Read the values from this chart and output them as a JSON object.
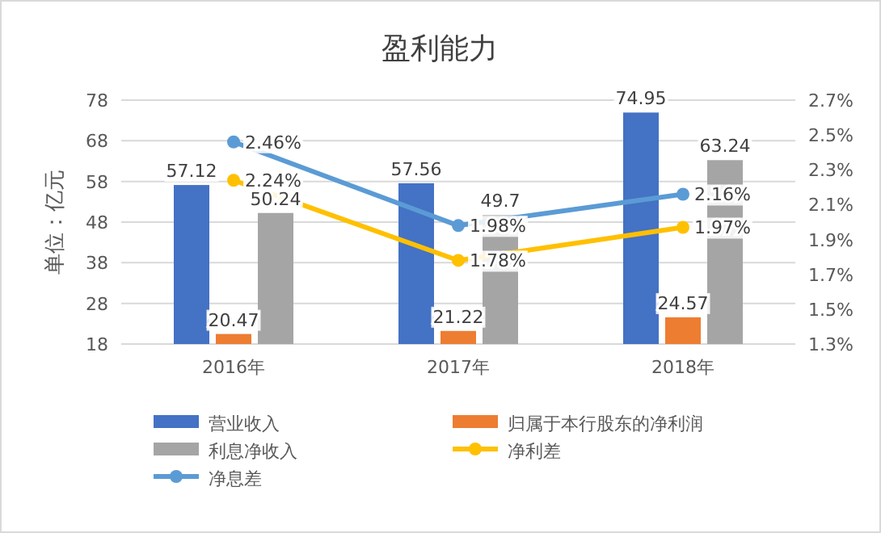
{
  "chart_data": {
    "type": "bar",
    "title": "盈利能力",
    "ylabel": "单位：亿元",
    "categories": [
      "2016年",
      "2017年",
      "2018年"
    ],
    "series": [
      {
        "name": "营业收入",
        "color": "#4472c4",
        "values": [
          57.12,
          57.56,
          74.95
        ],
        "value_labels": [
          "57.12",
          "57.56",
          "74.95"
        ]
      },
      {
        "name": "归属于本行股东的净利润",
        "color": "#ed7d31",
        "values": [
          20.47,
          21.22,
          24.57
        ],
        "value_labels": [
          "20.47",
          "21.22",
          "24.57"
        ]
      },
      {
        "name": "利息净收入",
        "color": "#a5a5a5",
        "values": [
          50.24,
          49.7,
          63.24
        ],
        "value_labels": [
          "50.24",
          "49.7",
          "63.24"
        ]
      },
      {
        "name": "净利差",
        "type": "line",
        "axis": "y2",
        "color": "#ffc000",
        "values": [
          2.24,
          1.78,
          1.97
        ],
        "value_labels": [
          "2.24%",
          "1.78%",
          "1.97%"
        ]
      },
      {
        "name": "净息差",
        "type": "line",
        "axis": "y2",
        "color": "#5b9bd5",
        "values": [
          2.46,
          1.98,
          2.16
        ],
        "value_labels": [
          "2.46%",
          "1.98%",
          "2.16%"
        ]
      }
    ],
    "ylim": [
      18,
      78
    ],
    "yticks": [
      18,
      28,
      38,
      48,
      58,
      68,
      78
    ],
    "y2lim": [
      1.3,
      2.7
    ],
    "y2ticks": [
      {
        "value": 1.3,
        "label": "1.3%"
      },
      {
        "value": 1.5,
        "label": "1.5%"
      },
      {
        "value": 1.7,
        "label": "1.7%"
      },
      {
        "value": 1.9,
        "label": "1.9%"
      },
      {
        "value": 2.1,
        "label": "2.1%"
      },
      {
        "value": 2.3,
        "label": "2.3%"
      },
      {
        "value": 2.5,
        "label": "2.5%"
      },
      {
        "value": 2.7,
        "label": "2.7%"
      }
    ],
    "grid": "y",
    "legend": "bottom",
    "marker": "circle"
  }
}
